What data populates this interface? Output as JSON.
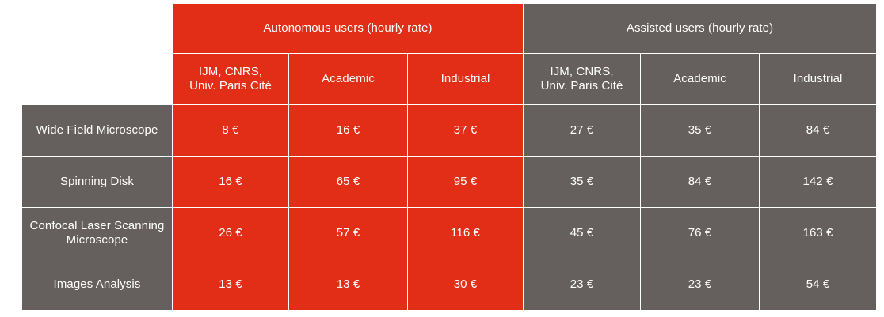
{
  "groups": {
    "autonomous": "Autonomous users (hourly rate)",
    "assisted": "Assisted users (hourly rate)"
  },
  "subheaders": {
    "autonomous": [
      "IJM, CNRS,\nUniv. Paris Cité",
      "Academic",
      "Industrial"
    ],
    "assisted": [
      "IJM, CNRS,\nUniv. Paris Cité",
      "Academic",
      "Industrial"
    ]
  },
  "rows": [
    {
      "label": "Wide Field Microscope",
      "autonomous": [
        "8 €",
        "16 €",
        "37 €"
      ],
      "assisted": [
        "27 €",
        "35 €",
        "84 €"
      ]
    },
    {
      "label": "Spinning Disk",
      "autonomous": [
        "16 €",
        "65 €",
        "95 €"
      ],
      "assisted": [
        "35 €",
        "84 €",
        "142 €"
      ]
    },
    {
      "label": "Confocal Laser Scanning\nMicroscope",
      "autonomous": [
        "26 €",
        "57 €",
        "116 €"
      ],
      "assisted": [
        "45 €",
        "76 €",
        "163 €"
      ]
    },
    {
      "label": "Images Analysis",
      "autonomous": [
        "13 €",
        "13 €",
        "30 €"
      ],
      "assisted": [
        "23 €",
        "23 €",
        "54 €"
      ]
    }
  ],
  "colors": {
    "autonomous": "#e22d17",
    "assisted": "#65605d",
    "rowhead": "#65605d"
  }
}
